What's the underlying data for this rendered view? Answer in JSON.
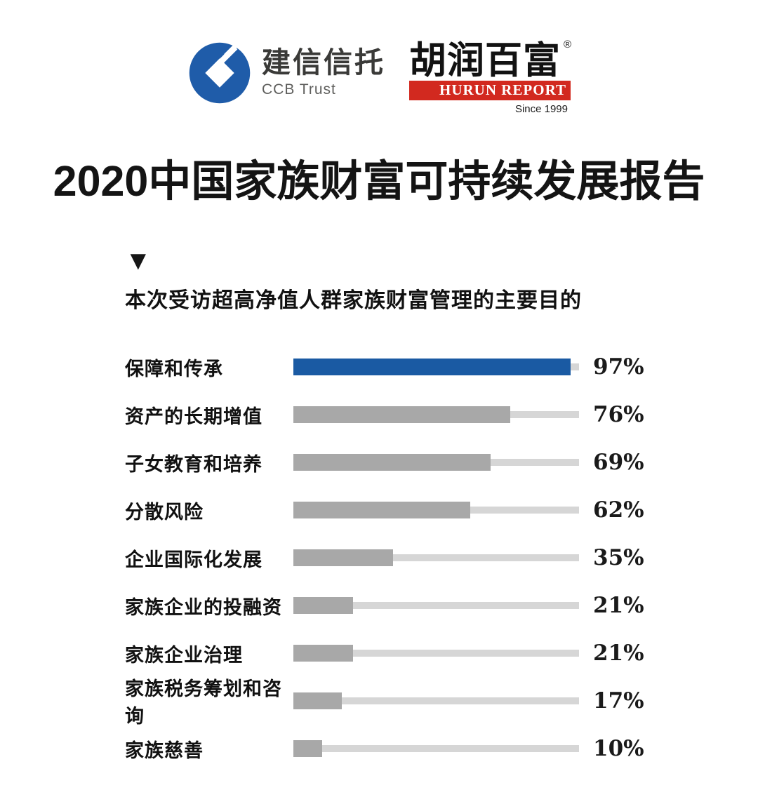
{
  "header": {
    "ccb": {
      "icon": "ccb-bank-icon",
      "name_cn": "建信信托",
      "name_en": "CCB Trust",
      "brand_blue": "#1F5CA9"
    },
    "hurun": {
      "name_cn": "胡润百富",
      "reg_mark": "®",
      "banner_en": "HURUN REPORT",
      "since": "Since 1999",
      "brand_red": "#D2291F"
    }
  },
  "title": "2020中国家族财富可持续发展报告",
  "section": {
    "marker": "▼",
    "subtitle": "本次受访超高净值人群家族财富管理的主要目的"
  },
  "chart_data": {
    "type": "bar",
    "orientation": "horizontal",
    "title": "本次受访超高净值人群家族财富管理的主要目的",
    "unit": "%",
    "xlim": [
      0,
      100
    ],
    "grid": false,
    "legend": false,
    "highlight_color": "#1A5AA3",
    "bar_color": "#A8A8A8",
    "track_color": "#D6D6D6",
    "categories": [
      "保障和传承",
      "资产的长期增值",
      "子女教育和培养",
      "分散风险",
      "企业国际化发展",
      "家族企业的投融资",
      "家族企业治理",
      "家族税务筹划和咨询",
      "家族慈善"
    ],
    "values": [
      97,
      76,
      69,
      62,
      35,
      21,
      21,
      17,
      10
    ],
    "rows": [
      {
        "label": "保障和传承",
        "value": 97,
        "display": "97%",
        "highlight": true
      },
      {
        "label": "资产的长期增值",
        "value": 76,
        "display": "76%",
        "highlight": false
      },
      {
        "label": "子女教育和培养",
        "value": 69,
        "display": "69%",
        "highlight": false
      },
      {
        "label": "分散风险",
        "value": 62,
        "display": "62%",
        "highlight": false
      },
      {
        "label": "企业国际化发展",
        "value": 35,
        "display": "35%",
        "highlight": false
      },
      {
        "label": "家族企业的投融资",
        "value": 21,
        "display": "21%",
        "highlight": false
      },
      {
        "label": "家族企业治理",
        "value": 21,
        "display": "21%",
        "highlight": false
      },
      {
        "label": "家族税务筹划和咨询",
        "value": 17,
        "display": "17%",
        "highlight": false
      },
      {
        "label": "家族慈善",
        "value": 10,
        "display": "10%",
        "highlight": false
      }
    ]
  }
}
